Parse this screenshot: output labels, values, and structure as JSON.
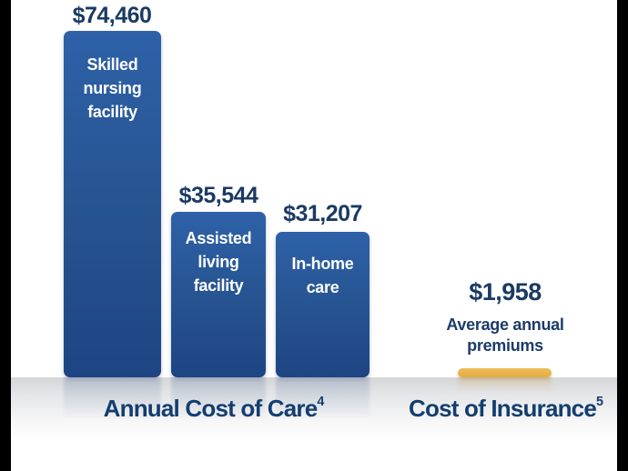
{
  "chart_data": {
    "type": "bar",
    "title": "",
    "ylim": [
      0,
      78000
    ],
    "axes_visible": false,
    "legend": "none",
    "groups": [
      {
        "label": "Annual Cost of Care",
        "footnote_marker": "4",
        "bars": [
          {
            "category": "Skilled nursing facility",
            "value": 74460,
            "value_label": "$74,460",
            "color_key": "blue"
          },
          {
            "category": "Assisted living facility",
            "value": 35544,
            "value_label": "$35,544",
            "color_key": "blue"
          },
          {
            "category": "In-home care",
            "value": 31207,
            "value_label": "$31,207",
            "color_key": "blue"
          }
        ]
      },
      {
        "label": "Cost of Insurance",
        "footnote_marker": "5",
        "bars": [
          {
            "category": "Average annual premiums",
            "value": 1958,
            "value_label": "$1,958",
            "color_key": "gold"
          }
        ]
      }
    ]
  },
  "colors": {
    "bar_blue_top": "#2e61a8",
    "bar_blue_bottom": "#1e4483",
    "bar_gold": "#e6b04a",
    "value_text": "#1a3a63",
    "axis_label_text": "#133e6e",
    "bar_label_text": "#ffffff",
    "floor_gray": "#d5d6d9",
    "background": "#ffffff",
    "frame": "#000000"
  }
}
